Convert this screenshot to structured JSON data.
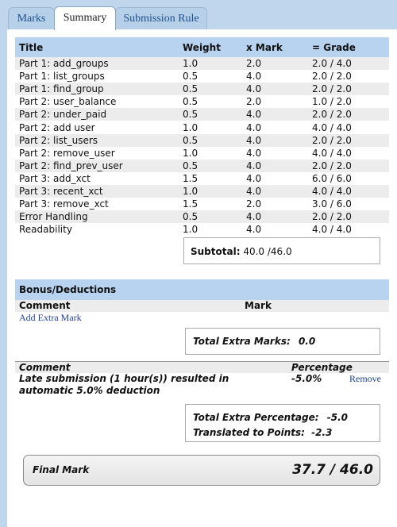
{
  "tabs": [
    {
      "label": "Marks"
    },
    {
      "label": "Summary"
    },
    {
      "label": "Submission Rule"
    }
  ],
  "grades": {
    "headers": {
      "title": "Title",
      "weight": "Weight",
      "mark": "x Mark",
      "grade": "= Grade"
    },
    "rows": [
      {
        "title": "Part 1: add_groups",
        "weight": "1.0",
        "mark": "2.0",
        "grade": "2.0 / 4.0"
      },
      {
        "title": "Part 1: list_groups",
        "weight": "0.5",
        "mark": "4.0",
        "grade": "2.0 / 2.0"
      },
      {
        "title": "Part 1: find_group",
        "weight": "0.5",
        "mark": "4.0",
        "grade": "2.0 / 2.0"
      },
      {
        "title": "Part 2: user_balance",
        "weight": "0.5",
        "mark": "2.0",
        "grade": "1.0 / 2.0"
      },
      {
        "title": "Part 2: under_paid",
        "weight": "0.5",
        "mark": "4.0",
        "grade": "2.0 / 2.0"
      },
      {
        "title": "Part 2: add user",
        "weight": "1.0",
        "mark": "4.0",
        "grade": "4.0 / 4.0"
      },
      {
        "title": "Part 2: list_users",
        "weight": "0.5",
        "mark": "4.0",
        "grade": "2.0 / 2.0"
      },
      {
        "title": "Part 2: remove_user",
        "weight": "1.0",
        "mark": "4.0",
        "grade": "4.0 / 4.0"
      },
      {
        "title": "Part 2: find_prev_user",
        "weight": "0.5",
        "mark": "4.0",
        "grade": "2.0 / 2.0"
      },
      {
        "title": "Part 3: add_xct",
        "weight": "1.5",
        "mark": "4.0",
        "grade": "6.0 / 6.0"
      },
      {
        "title": "Part 3: recent_xct",
        "weight": "1.0",
        "mark": "4.0",
        "grade": "4.0 / 4.0"
      },
      {
        "title": "Part 3: remove_xct",
        "weight": "1.5",
        "mark": "2.0",
        "grade": "3.0 / 6.0"
      },
      {
        "title": "Error Handling",
        "weight": "0.5",
        "mark": "4.0",
        "grade": "2.0 / 2.0"
      },
      {
        "title": "Readability",
        "weight": "1.0",
        "mark": "4.0",
        "grade": "4.0 / 4.0"
      }
    ],
    "subtotal_label": "Subtotal:",
    "subtotal_value": "40.0 /46.0"
  },
  "bonus": {
    "heading": "Bonus/Deductions",
    "comment_col": "Comment",
    "mark_col": "Mark",
    "add_extra_label": "Add Extra Mark",
    "total_extra_label": "Total Extra Marks:",
    "total_extra_value": "0.0"
  },
  "deductions": {
    "comment_col": "Comment",
    "percentage_col": "Percentage",
    "items": [
      {
        "comment": "Late submission (1 hour(s)) resulted in automatic 5.0% deduction",
        "percentage": "-5.0%",
        "remove_label": "Remove"
      }
    ],
    "total_pct_label": "Total Extra Percentage:",
    "total_pct_value": "-5.0",
    "points_label": "Translated to Points:",
    "points_value": "-2.3"
  },
  "final": {
    "label": "Final Mark",
    "value": "37.7 / 46.0"
  }
}
